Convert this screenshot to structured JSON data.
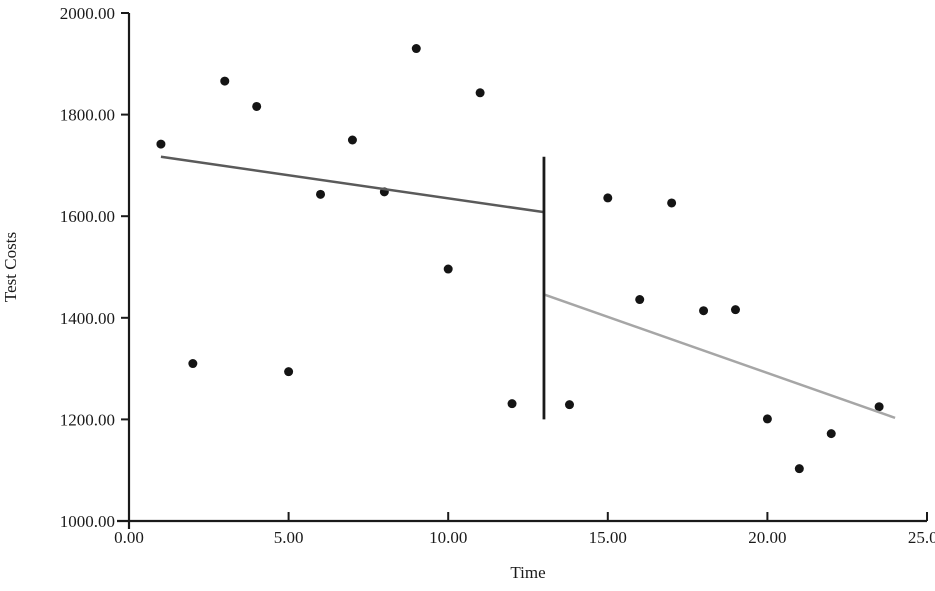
{
  "chart_data": {
    "type": "scatter",
    "title": "",
    "xlabel": "Time",
    "ylabel": "Test Costs",
    "xlim": [
      0,
      25
    ],
    "ylim": [
      1000,
      2000
    ],
    "grid": false,
    "legend": "none",
    "x_ticks": [
      {
        "value": 0,
        "label": "0.00"
      },
      {
        "value": 5,
        "label": "5.00"
      },
      {
        "value": 10,
        "label": "10.00"
      },
      {
        "value": 15,
        "label": "15.00"
      },
      {
        "value": 20,
        "label": "20.00"
      },
      {
        "value": 25,
        "label": "25.00"
      }
    ],
    "y_ticks": [
      {
        "value": 2000,
        "label": "2000.00"
      },
      {
        "value": 1800,
        "label": "1800.00"
      },
      {
        "value": 1600,
        "label": "1600.00"
      },
      {
        "value": 1400,
        "label": "1400.00"
      },
      {
        "value": 1200,
        "label": "1200.00"
      },
      {
        "value": 1000,
        "label": "1000.00"
      }
    ],
    "colors": {
      "points": "#141414",
      "pre_trend": "#5a5a5a",
      "post_trend": "#a6a6a6",
      "intervention_line": "#1a1a1a",
      "axis": "#1a1a1a"
    },
    "series": [
      {
        "name": "pre-intervention-points",
        "kind": "scatter",
        "color_key": "points",
        "marker_radius": 4.5,
        "points": [
          [
            1,
            1742
          ],
          [
            2,
            1310
          ],
          [
            3,
            1866
          ],
          [
            4,
            1816
          ],
          [
            5,
            1294
          ],
          [
            6,
            1643
          ],
          [
            7,
            1750
          ],
          [
            8,
            1648
          ],
          [
            9,
            1930
          ],
          [
            10,
            1496
          ],
          [
            11,
            1843
          ],
          [
            12,
            1231
          ]
        ]
      },
      {
        "name": "post-intervention-points",
        "kind": "scatter",
        "color_key": "points",
        "marker_radius": 4.5,
        "points": [
          [
            13.8,
            1229
          ],
          [
            15,
            1636
          ],
          [
            16,
            1436
          ],
          [
            17,
            1626
          ],
          [
            18,
            1414
          ],
          [
            19,
            1416
          ],
          [
            20,
            1201
          ],
          [
            21,
            1103
          ],
          [
            22,
            1172
          ],
          [
            23.5,
            1225
          ]
        ]
      },
      {
        "name": "pre-intervention-trend",
        "kind": "line",
        "color_key": "pre_trend",
        "stroke_width": 2.5,
        "points": [
          [
            1,
            1717
          ],
          [
            13,
            1608
          ]
        ]
      },
      {
        "name": "post-intervention-trend",
        "kind": "line",
        "color_key": "post_trend",
        "stroke_width": 2.5,
        "points": [
          [
            13,
            1446
          ],
          [
            24,
            1203
          ]
        ]
      },
      {
        "name": "intervention-line",
        "kind": "line",
        "color_key": "intervention_line",
        "stroke_width": 2.8,
        "points": [
          [
            13,
            1200
          ],
          [
            13,
            1717
          ]
        ]
      }
    ]
  }
}
